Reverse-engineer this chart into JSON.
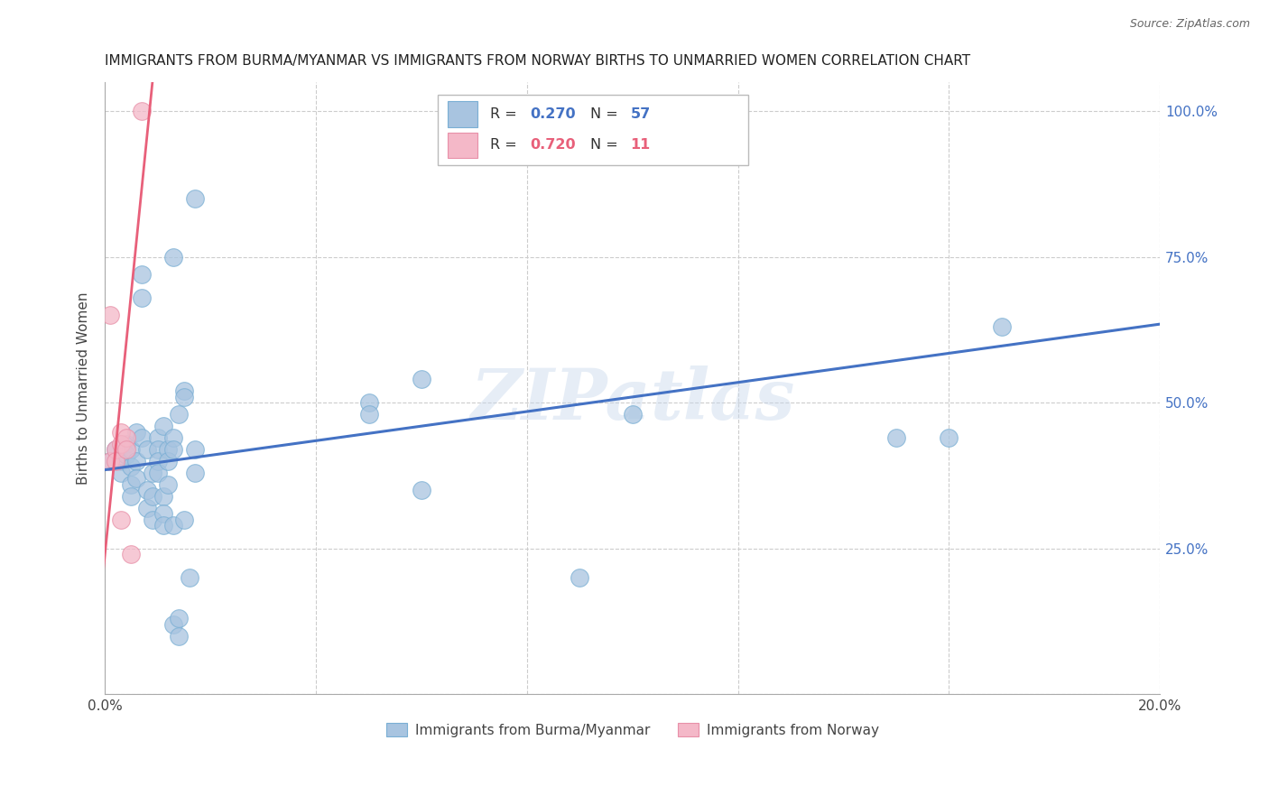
{
  "title": "IMMIGRANTS FROM BURMA/MYANMAR VS IMMIGRANTS FROM NORWAY BIRTHS TO UNMARRIED WOMEN CORRELATION CHART",
  "source": "Source: ZipAtlas.com",
  "ylabel": "Births to Unmarried Women",
  "xlim": [
    0.0,
    0.2
  ],
  "ylim": [
    0.0,
    1.05
  ],
  "xticks": [
    0.0,
    0.04,
    0.08,
    0.12,
    0.16,
    0.2
  ],
  "xticklabels": [
    "0.0%",
    "",
    "",
    "",
    "",
    "20.0%"
  ],
  "yticks": [
    0.0,
    0.25,
    0.5,
    0.75,
    1.0
  ],
  "yticklabels": [
    "",
    "25.0%",
    "50.0%",
    "75.0%",
    "100.0%"
  ],
  "r_blue": "0.270",
  "n_blue": "57",
  "r_pink": "0.720",
  "n_pink": "11",
  "blue_scatter_color": "#a8c4e0",
  "blue_scatter_edge": "#7aafd4",
  "pink_scatter_color": "#f4b8c8",
  "pink_scatter_edge": "#e890a8",
  "blue_line_color": "#4472c4",
  "pink_line_color": "#e8607a",
  "watermark": "ZIPatlas",
  "blue_scatter": [
    [
      0.001,
      0.4
    ],
    [
      0.002,
      0.42
    ],
    [
      0.003,
      0.4
    ],
    [
      0.003,
      0.38
    ],
    [
      0.004,
      0.43
    ],
    [
      0.004,
      0.41
    ],
    [
      0.005,
      0.39
    ],
    [
      0.005,
      0.36
    ],
    [
      0.005,
      0.34
    ],
    [
      0.005,
      0.42
    ],
    [
      0.006,
      0.4
    ],
    [
      0.006,
      0.45
    ],
    [
      0.006,
      0.37
    ],
    [
      0.007,
      0.72
    ],
    [
      0.007,
      0.68
    ],
    [
      0.007,
      0.44
    ],
    [
      0.008,
      0.35
    ],
    [
      0.008,
      0.32
    ],
    [
      0.008,
      0.42
    ],
    [
      0.009,
      0.38
    ],
    [
      0.009,
      0.34
    ],
    [
      0.009,
      0.3
    ],
    [
      0.01,
      0.44
    ],
    [
      0.01,
      0.42
    ],
    [
      0.01,
      0.4
    ],
    [
      0.01,
      0.38
    ],
    [
      0.011,
      0.46
    ],
    [
      0.011,
      0.34
    ],
    [
      0.011,
      0.31
    ],
    [
      0.011,
      0.29
    ],
    [
      0.012,
      0.42
    ],
    [
      0.012,
      0.4
    ],
    [
      0.012,
      0.36
    ],
    [
      0.013,
      0.75
    ],
    [
      0.013,
      0.44
    ],
    [
      0.013,
      0.42
    ],
    [
      0.013,
      0.29
    ],
    [
      0.013,
      0.12
    ],
    [
      0.014,
      0.48
    ],
    [
      0.014,
      0.13
    ],
    [
      0.014,
      0.1
    ],
    [
      0.015,
      0.52
    ],
    [
      0.015,
      0.51
    ],
    [
      0.015,
      0.3
    ],
    [
      0.016,
      0.2
    ],
    [
      0.017,
      0.85
    ],
    [
      0.017,
      0.42
    ],
    [
      0.017,
      0.38
    ],
    [
      0.05,
      0.5
    ],
    [
      0.05,
      0.48
    ],
    [
      0.06,
      0.54
    ],
    [
      0.06,
      0.35
    ],
    [
      0.09,
      0.2
    ],
    [
      0.1,
      0.48
    ],
    [
      0.15,
      0.44
    ],
    [
      0.16,
      0.44
    ],
    [
      0.17,
      0.63
    ]
  ],
  "pink_scatter": [
    [
      0.001,
      0.65
    ],
    [
      0.001,
      0.4
    ],
    [
      0.002,
      0.42
    ],
    [
      0.002,
      0.4
    ],
    [
      0.003,
      0.45
    ],
    [
      0.003,
      0.43
    ],
    [
      0.003,
      0.3
    ],
    [
      0.004,
      0.44
    ],
    [
      0.004,
      0.42
    ],
    [
      0.005,
      0.24
    ],
    [
      0.007,
      1.0
    ]
  ],
  "blue_line_x": [
    0.0,
    0.2
  ],
  "blue_line_y": [
    0.385,
    0.635
  ],
  "pink_line_x": [
    -0.001,
    0.009
  ],
  "pink_line_y": [
    0.15,
    1.05
  ]
}
